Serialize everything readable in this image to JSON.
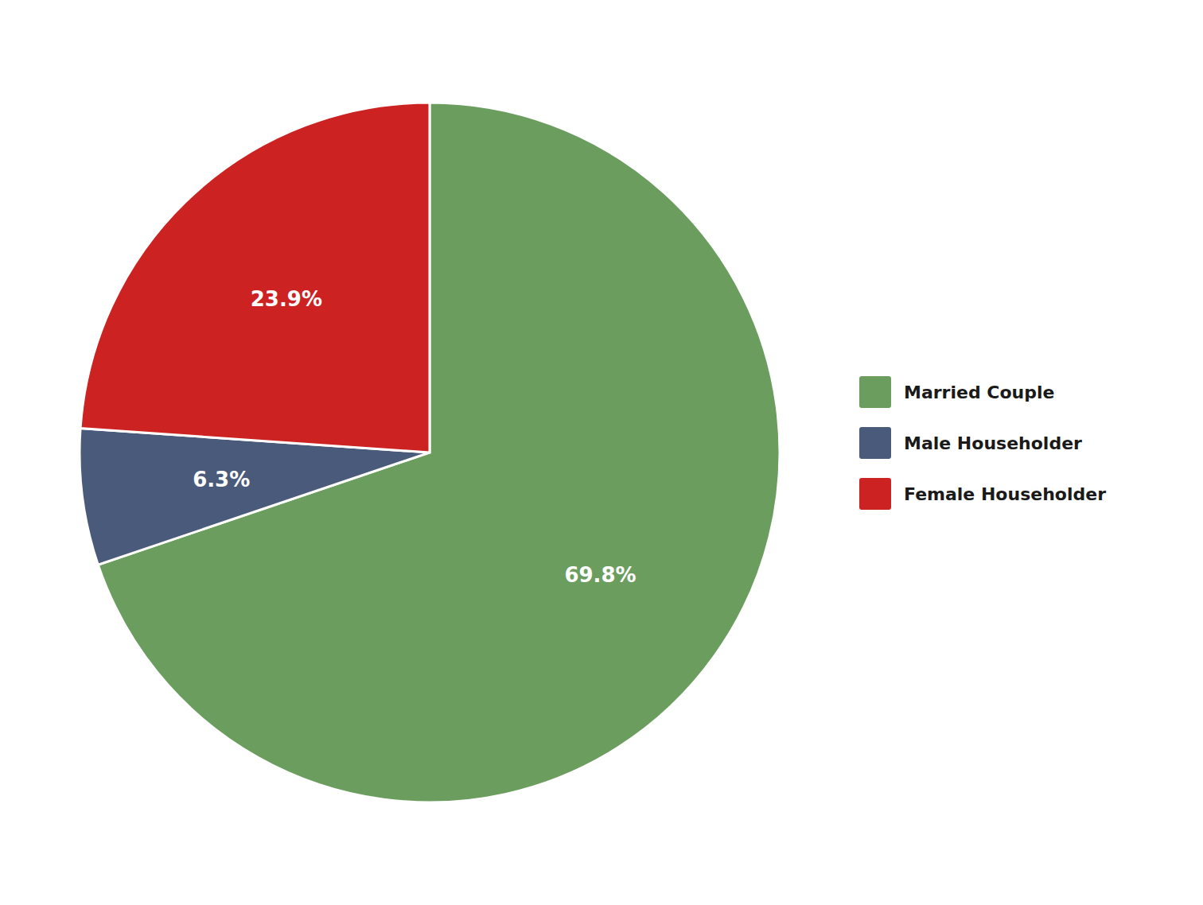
{
  "chart_data": {
    "type": "pie",
    "categories": [
      "Married Couple",
      "Male Householder",
      "Female Householder"
    ],
    "values": [
      69.8,
      6.3,
      23.9
    ],
    "value_labels": [
      "69.8%",
      "6.3%",
      "23.9%"
    ],
    "colors": [
      "#6b9e5e",
      "#4a5a7a",
      "#cc2222"
    ],
    "data_labels": true,
    "legend": "right"
  }
}
